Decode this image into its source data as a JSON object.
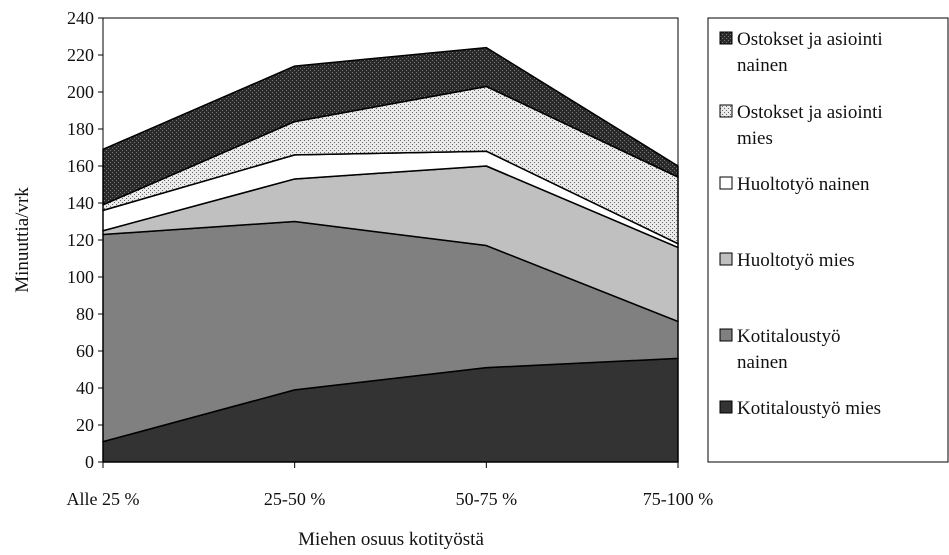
{
  "chart_data": {
    "type": "area",
    "stacked": true,
    "categories": [
      "Alle 25 %",
      "25-50 %",
      "50-75 %",
      "75-100 %"
    ],
    "xlabel": "Miehen osuus kotityöstä",
    "ylabel": "Minuuttia/vrk",
    "ylim": [
      0,
      240
    ],
    "yticks": [
      0,
      20,
      40,
      60,
      80,
      100,
      120,
      140,
      160,
      180,
      200,
      220,
      240
    ],
    "grid": false,
    "legend_position": "right",
    "series": [
      {
        "name": "Kotitaloustyö mies",
        "values": [
          11,
          39,
          51,
          56
        ],
        "color": "#333333",
        "pattern": "solid-dark"
      },
      {
        "name": "Kotitaloustyö nainen",
        "values": [
          112,
          91,
          66,
          20
        ],
        "color": "#808080",
        "pattern": "solid-mid"
      },
      {
        "name": "Huoltotyö mies",
        "values": [
          2,
          23,
          43,
          40
        ],
        "color": "#c0c0c0",
        "pattern": "solid-light"
      },
      {
        "name": "Huoltotyö nainen",
        "values": [
          11,
          13,
          8,
          2
        ],
        "color": "#ffffff",
        "pattern": "white"
      },
      {
        "name": "Ostokset ja asiointi mies",
        "values": [
          3,
          18,
          35,
          36
        ],
        "color": "#d8d8d8",
        "pattern": "dots"
      },
      {
        "name": "Ostokset ja asiointi nainen",
        "values": [
          30,
          30,
          21,
          6
        ],
        "color": "#303030",
        "pattern": "dark-checker"
      }
    ],
    "legend": [
      {
        "line1": "Ostokset ja asiointi",
        "line2": "nainen",
        "series": 5
      },
      {
        "line1": "Ostokset ja asiointi",
        "line2": "mies",
        "series": 4
      },
      {
        "line1": "Huoltotyö nainen",
        "line2": "",
        "series": 3
      },
      {
        "line1": "Huoltotyö mies",
        "line2": "",
        "series": 2
      },
      {
        "line1": "Kotitaloustyö",
        "line2": "nainen",
        "series": 1
      },
      {
        "line1": "Kotitaloustyö mies",
        "line2": "",
        "series": 0
      }
    ]
  }
}
